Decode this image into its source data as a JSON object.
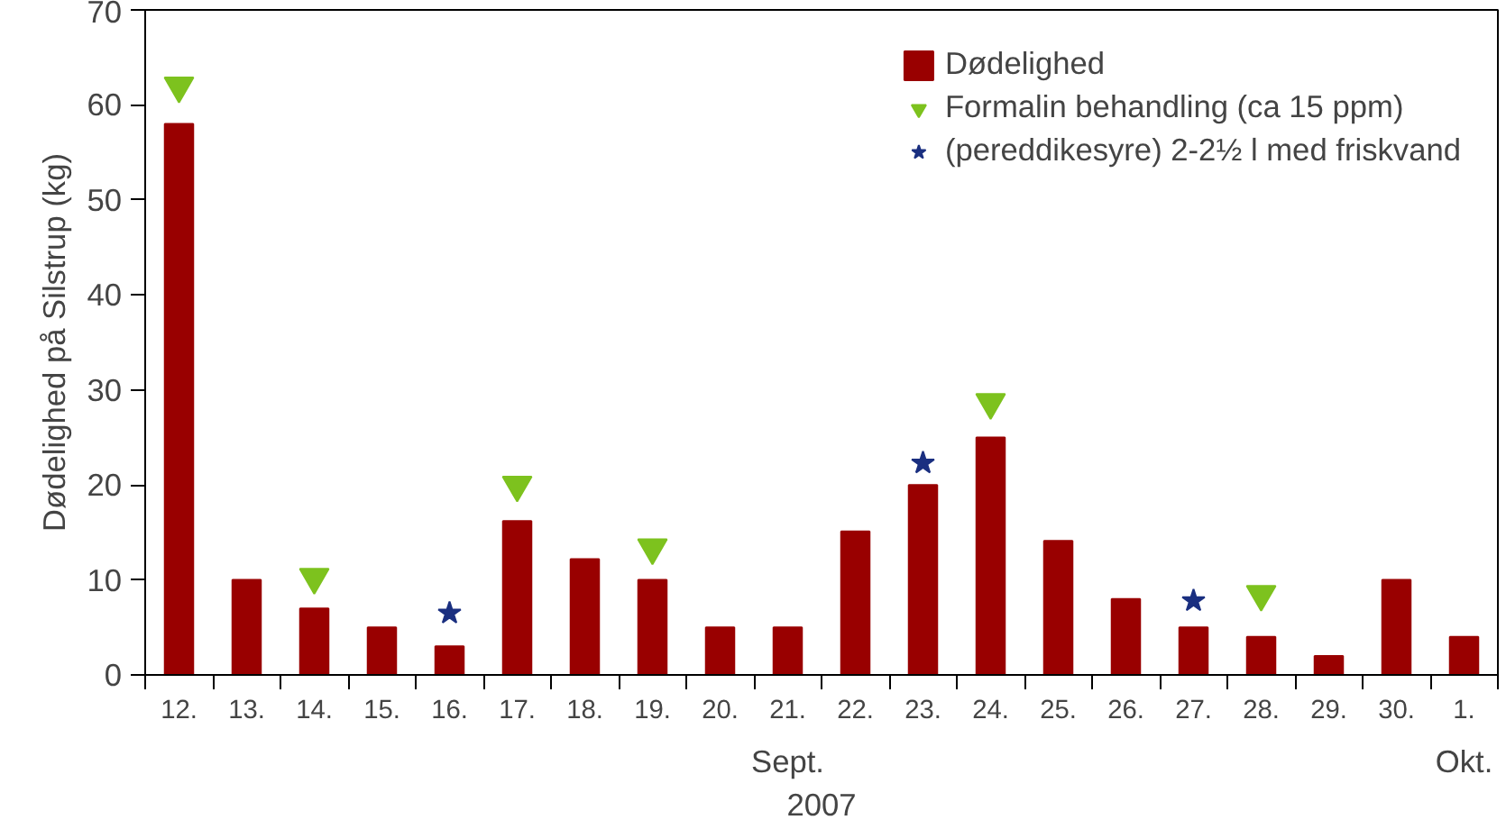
{
  "chart_data": {
    "type": "bar",
    "ylabel": "Dødelighed på Silstrup (kg)",
    "xlabel": "2007",
    "categories": [
      "12.",
      "13.",
      "14.",
      "15.",
      "16.",
      "17.",
      "18.",
      "19.",
      "20.",
      "21.",
      "22.",
      "23.",
      "24.",
      "25.",
      "26.",
      "27.",
      "28.",
      "29.",
      "30.",
      "1."
    ],
    "series": [
      {
        "name": "Dødelighed",
        "type": "bar",
        "color": "#990000",
        "values": [
          58,
          10,
          7,
          5,
          3,
          16.2,
          12.2,
          10,
          5,
          5,
          15.1,
          20,
          25,
          14.1,
          8,
          5,
          4,
          2,
          10,
          4
        ]
      },
      {
        "name": "Formalin behandling (ca 15 ppm)",
        "type": "scatter",
        "marker": "triangle",
        "color": "#7dc21e",
        "x": [
          "12.",
          "14.",
          "17.",
          "19.",
          "24.",
          "28."
        ],
        "values": [
          62,
          10.3,
          20,
          13.4,
          28.7,
          8.5
        ]
      },
      {
        "name": "(pereddikesyre) 2-2½ l med friskvand",
        "type": "scatter",
        "marker": "star",
        "color": "#1a2f80",
        "x": [
          "16.",
          "23.",
          "27."
        ],
        "values": [
          6.5,
          22.3,
          7.8
        ]
      }
    ],
    "annotations": [
      "Sept.",
      "Okt."
    ],
    "ylim": [
      0,
      70
    ],
    "yticks": [
      0,
      10,
      20,
      30,
      40,
      50,
      60,
      70
    ],
    "grid": false,
    "legend": "top right"
  }
}
